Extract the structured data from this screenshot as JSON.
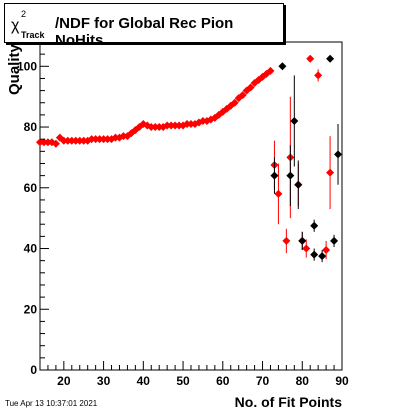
{
  "chart_data": {
    "type": "scatter",
    "title": {
      "prefix": "χ",
      "superscript": "2",
      "subscript": "Track",
      "main": "/NDF for Global Rec Pion NoHits"
    },
    "xlabel": "No. of Fit Points",
    "ylabel": "Quality",
    "xlim": [
      14,
      90
    ],
    "ylim": [
      0,
      108
    ],
    "xticks": [
      20,
      30,
      40,
      50,
      60,
      70,
      80,
      90
    ],
    "yticks": [
      0,
      20,
      40,
      60,
      80,
      100
    ],
    "grid": false,
    "colors": {
      "red": "#ff0000",
      "black": "#000000"
    },
    "series": [
      {
        "color": "red",
        "points": [
          {
            "x": 14,
            "y": 75
          },
          {
            "x": 15,
            "y": 75
          },
          {
            "x": 16,
            "y": 75
          },
          {
            "x": 17,
            "y": 75
          },
          {
            "x": 18,
            "y": 74.5
          },
          {
            "x": 19,
            "y": 76.5
          },
          {
            "x": 20,
            "y": 75.5
          },
          {
            "x": 21,
            "y": 75.5
          },
          {
            "x": 22,
            "y": 75.5
          },
          {
            "x": 23,
            "y": 75.5
          },
          {
            "x": 24,
            "y": 75.5
          },
          {
            "x": 25,
            "y": 75.5
          },
          {
            "x": 26,
            "y": 75.5
          },
          {
            "x": 27,
            "y": 76
          },
          {
            "x": 28,
            "y": 76
          },
          {
            "x": 29,
            "y": 76
          },
          {
            "x": 30,
            "y": 76
          },
          {
            "x": 31,
            "y": 76
          },
          {
            "x": 32,
            "y": 76
          },
          {
            "x": 33,
            "y": 76.5
          },
          {
            "x": 34,
            "y": 76.5
          },
          {
            "x": 35,
            "y": 77
          },
          {
            "x": 36,
            "y": 77
          },
          {
            "x": 37,
            "y": 78
          },
          {
            "x": 38,
            "y": 79
          },
          {
            "x": 39,
            "y": 80
          },
          {
            "x": 40,
            "y": 81
          },
          {
            "x": 41,
            "y": 80.5
          },
          {
            "x": 42,
            "y": 80
          },
          {
            "x": 43,
            "y": 80
          },
          {
            "x": 44,
            "y": 80
          },
          {
            "x": 45,
            "y": 80
          },
          {
            "x": 46,
            "y": 80.5
          },
          {
            "x": 47,
            "y": 80.5
          },
          {
            "x": 48,
            "y": 80.5
          },
          {
            "x": 49,
            "y": 80.5
          },
          {
            "x": 50,
            "y": 80.5
          },
          {
            "x": 51,
            "y": 81
          },
          {
            "x": 52,
            "y": 81
          },
          {
            "x": 53,
            "y": 81
          },
          {
            "x": 54,
            "y": 81.5
          },
          {
            "x": 55,
            "y": 82
          },
          {
            "x": 56,
            "y": 82
          },
          {
            "x": 57,
            "y": 82.5
          },
          {
            "x": 58,
            "y": 83
          },
          {
            "x": 59,
            "y": 84
          },
          {
            "x": 60,
            "y": 85
          },
          {
            "x": 61,
            "y": 86
          },
          {
            "x": 62,
            "y": 87
          },
          {
            "x": 63,
            "y": 88
          },
          {
            "x": 64,
            "y": 89.5
          },
          {
            "x": 65,
            "y": 90.5
          },
          {
            "x": 66,
            "y": 92
          },
          {
            "x": 67,
            "y": 93
          },
          {
            "x": 68,
            "y": 94.5
          },
          {
            "x": 69,
            "y": 95.5
          },
          {
            "x": 70,
            "y": 96.5
          },
          {
            "x": 71,
            "y": 97.5
          },
          {
            "x": 72,
            "y": 98.5
          },
          {
            "x": 73,
            "y": 67.5,
            "err": 8
          },
          {
            "x": 74,
            "y": 58,
            "err": 10
          },
          {
            "x": 76,
            "y": 42.5,
            "err": 4
          },
          {
            "x": 77,
            "y": 70,
            "err": 20
          },
          {
            "x": 79,
            "y": 61,
            "err": 7
          },
          {
            "x": 80,
            "y": 42.5,
            "err": 3
          },
          {
            "x": 81,
            "y": 40,
            "err": 3
          },
          {
            "x": 82,
            "y": 102.5,
            "err": 0
          },
          {
            "x": 84,
            "y": 97,
            "err": 2
          },
          {
            "x": 86,
            "y": 39.5,
            "err": 3
          },
          {
            "x": 87,
            "y": 65,
            "err": 12
          }
        ]
      },
      {
        "color": "black",
        "points": [
          {
            "x": 73,
            "y": 64,
            "err": 6
          },
          {
            "x": 75,
            "y": 100,
            "err": 0
          },
          {
            "x": 77,
            "y": 64,
            "err": 10
          },
          {
            "x": 78,
            "y": 82,
            "err": 15
          },
          {
            "x": 79,
            "y": 61,
            "err": 8
          },
          {
            "x": 80,
            "y": 42.5,
            "err": 3
          },
          {
            "x": 83,
            "y": 47.5,
            "err": 2
          },
          {
            "x": 83,
            "y": 38,
            "err": 2
          },
          {
            "x": 85,
            "y": 37.5,
            "err": 2
          },
          {
            "x": 87,
            "y": 102.5,
            "err": 0
          },
          {
            "x": 88,
            "y": 42.5,
            "err": 2
          },
          {
            "x": 89,
            "y": 71,
            "err": 10
          }
        ]
      }
    ]
  },
  "stamp": "Tue Apr 13 10:37:01 2021"
}
